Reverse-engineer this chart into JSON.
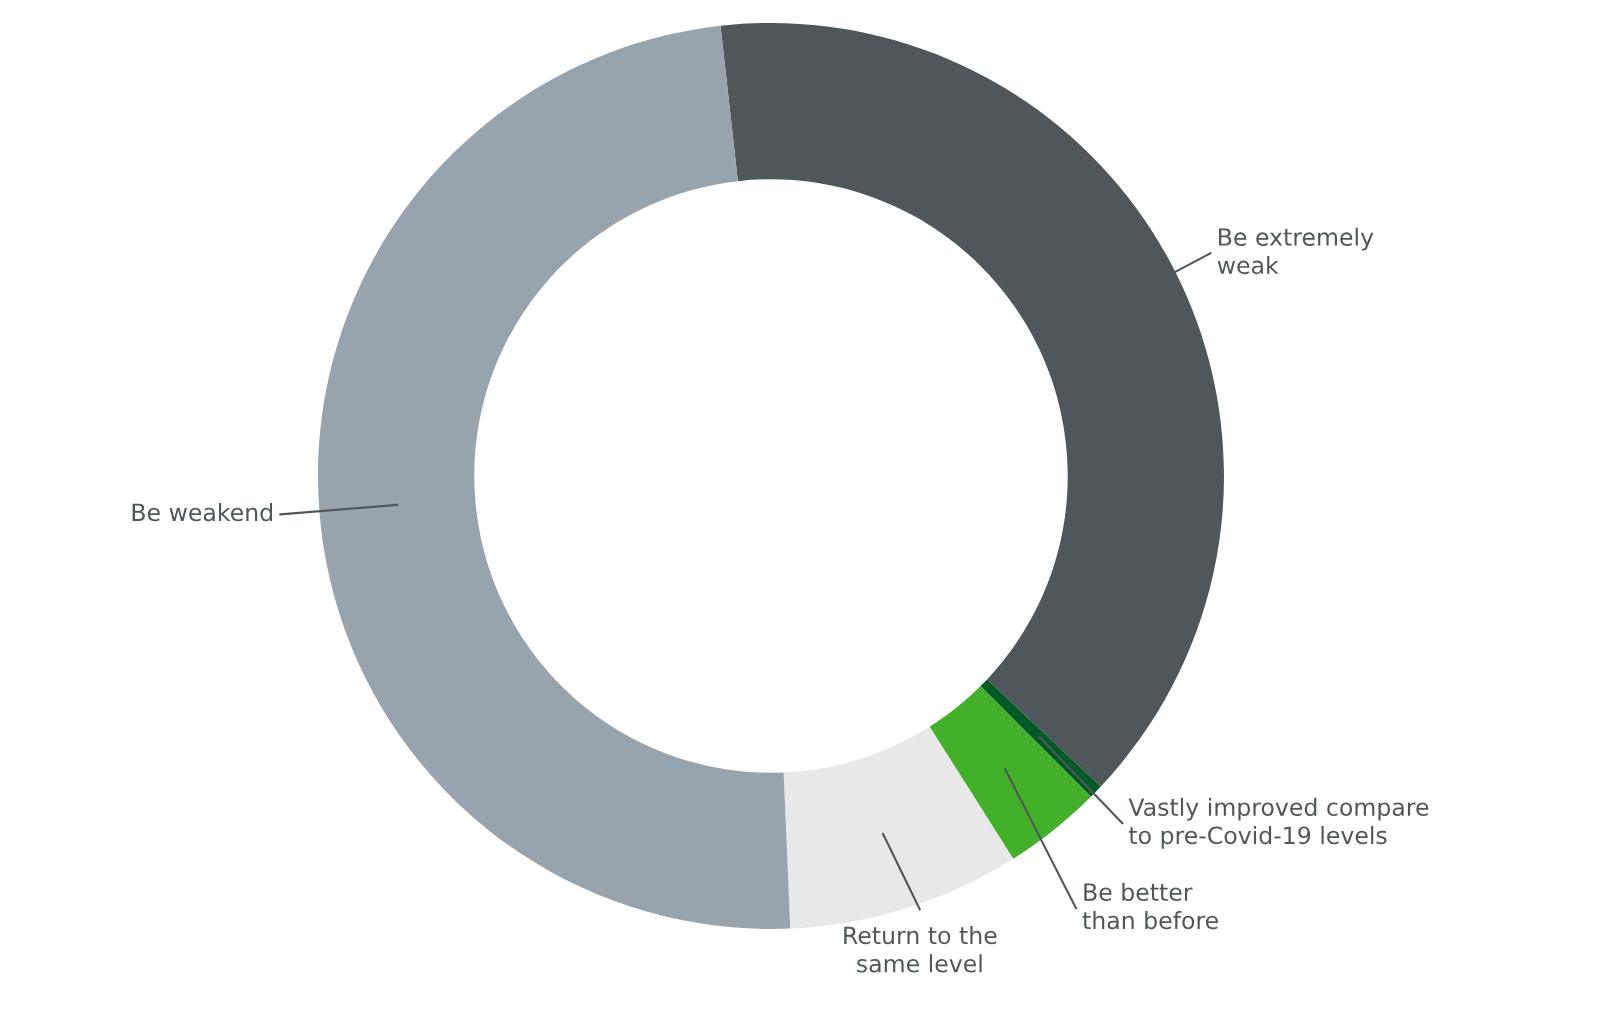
{
  "chart_data": {
    "type": "donut",
    "categories": [
      "Be extremely\nweak",
      "Vastly improved compare\nto pre-Covid-19 levels",
      "Be better\nthan before",
      "Return to the\nsame level",
      "Be weakend"
    ],
    "values": [
      38.8,
      0.5,
      3.5,
      8.3,
      48.9
    ],
    "colors": [
      "#50575a",
      "#005a25",
      "#43b02a",
      "#e8e8e8",
      "#98a4ad"
    ]
  }
}
